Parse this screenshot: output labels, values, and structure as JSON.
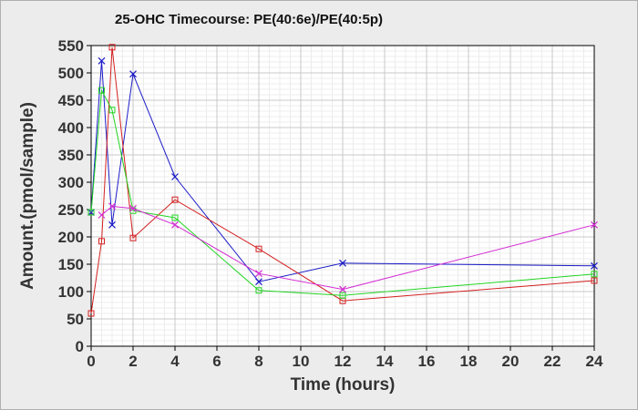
{
  "chart_data": {
    "type": "line",
    "title": "25-OHC Timecourse: PE(40:6e)/PE(40:5p)",
    "xlabel": "Time (hours)",
    "ylabel": "Amount.(pmol/sample)",
    "xlim": [
      0,
      24
    ],
    "ylim": [
      0,
      550
    ],
    "x_ticks": [
      0,
      2,
      4,
      6,
      8,
      10,
      12,
      14,
      16,
      18,
      20,
      22,
      24
    ],
    "y_ticks": [
      0,
      50,
      100,
      150,
      200,
      250,
      300,
      350,
      400,
      450,
      500,
      550
    ],
    "grid": true,
    "legend": "none",
    "series": [
      {
        "color": "#1c1cc8",
        "marker": "x",
        "points": [
          [
            0,
            245
          ],
          [
            0.5,
            522
          ],
          [
            1,
            222
          ],
          [
            2,
            498
          ],
          [
            4,
            310
          ],
          [
            8,
            118
          ],
          [
            12,
            152
          ],
          [
            24,
            147
          ]
        ]
      },
      {
        "color": "#d42020",
        "marker": "square",
        "points": [
          [
            0,
            60
          ],
          [
            0.5,
            192
          ],
          [
            1,
            547
          ],
          [
            2,
            198
          ],
          [
            4,
            268
          ],
          [
            8,
            178
          ],
          [
            12,
            83
          ],
          [
            24,
            120
          ]
        ]
      },
      {
        "color": "#22d422",
        "marker": "square",
        "points": [
          [
            0,
            245
          ],
          [
            0.5,
            468
          ],
          [
            1,
            432
          ],
          [
            2,
            248
          ],
          [
            4,
            235
          ],
          [
            8,
            102
          ],
          [
            12,
            93
          ],
          [
            24,
            132
          ]
        ]
      },
      {
        "color": "#d42cd4",
        "marker": "x",
        "points": [
          [
            0.5,
            240
          ],
          [
            1,
            256
          ],
          [
            2,
            252
          ],
          [
            4,
            222
          ],
          [
            8,
            133
          ],
          [
            12,
            104
          ],
          [
            24,
            222
          ]
        ]
      }
    ]
  }
}
